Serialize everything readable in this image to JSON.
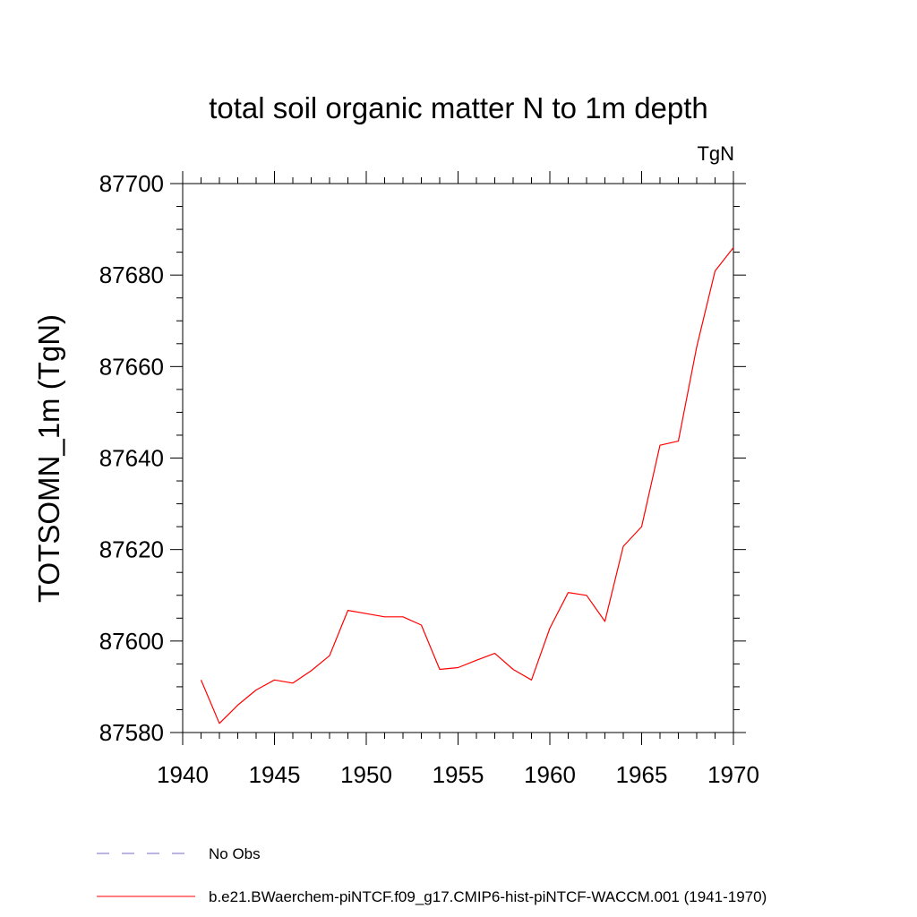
{
  "chart_data": {
    "type": "line",
    "title": "total soil organic matter N to 1m depth",
    "units": "TgN",
    "ylabel": "TOTSOMN_1m  (TgN)",
    "xlabel": "",
    "xlim": [
      1940,
      1970
    ],
    "ylim": [
      87580,
      87700
    ],
    "xticks": [
      1940,
      1945,
      1950,
      1955,
      1960,
      1965,
      1970
    ],
    "yticks": [
      87580,
      87600,
      87620,
      87640,
      87660,
      87680,
      87700
    ],
    "grid": false,
    "series": [
      {
        "name": "b.e21.BWaerchem-piNTCF.f09_g17.CMIP6-hist-piNTCF-WACCM.001 (1941-1970)",
        "color": "#ff0000",
        "x": [
          1941,
          1942,
          1943,
          1944,
          1945,
          1946,
          1947,
          1948,
          1949,
          1950,
          1951,
          1952,
          1953,
          1954,
          1955,
          1956,
          1957,
          1958,
          1959,
          1960,
          1961,
          1962,
          1963,
          1964,
          1965,
          1966,
          1967,
          1968,
          1969,
          1970
        ],
        "y": [
          87591.5,
          87582,
          87586,
          87589.3,
          87591.5,
          87590.8,
          87593.5,
          87596.8,
          87606.7,
          87606,
          87605.3,
          87605.3,
          87603.5,
          87593.8,
          87594.2,
          87595.8,
          87597.3,
          87593.8,
          87591.5,
          87602.8,
          87610.6,
          87610,
          87604.3,
          87620.7,
          87625,
          87642.8,
          87643.7,
          87664.3,
          87680.9,
          87686
        ]
      }
    ],
    "legend": [
      {
        "label": "No Obs",
        "style": "dashed",
        "color": "#7b68c8"
      },
      {
        "label": "b.e21.BWaerchem-piNTCF.f09_g17.CMIP6-hist-piNTCF-WACCM.001 (1941-1970)",
        "style": "solid",
        "color": "#ff0000"
      }
    ],
    "legend_position": "bottom-left"
  }
}
